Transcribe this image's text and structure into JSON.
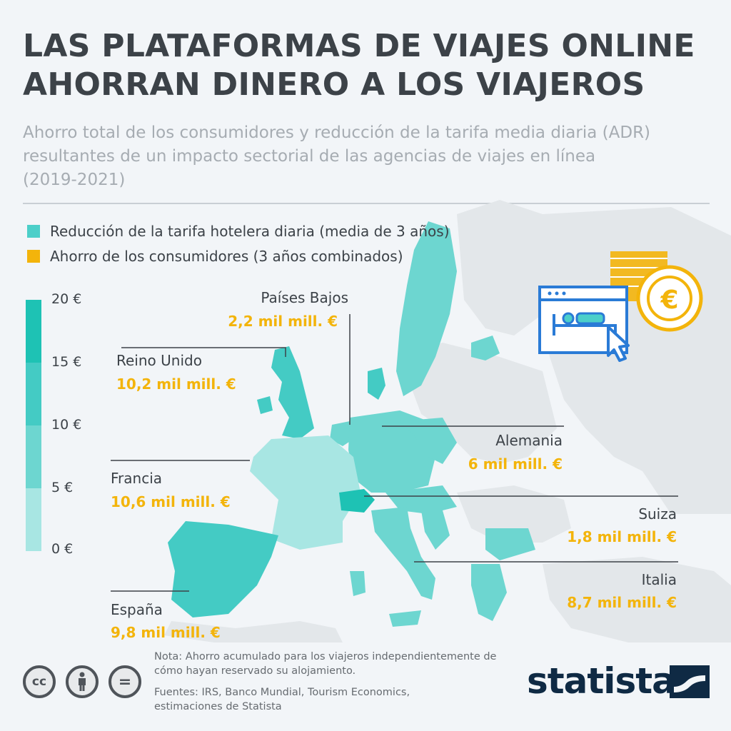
{
  "header": {
    "title": "LAS PLATAFORMAS DE VIAJES ONLINE AHORRAN DINERO A LOS VIAJEROS",
    "subtitle": "Ahorro total de los consumidores y reducción de la tarifa media diaria (ADR) resultantes de un impacto sectorial de las agencias de viajes en línea (2019-2021)"
  },
  "legend": {
    "items": [
      {
        "label": "Reducción de la tarifa hotelera diaria (media de 3 años)",
        "color": "#4ccfc9"
      },
      {
        "label": "Ahorro de los consumidores (3 años combinados)",
        "color": "#f3b40b"
      }
    ]
  },
  "color_scale": {
    "ticks": [
      "20 €",
      "15 €",
      "10 €",
      "5 €",
      "0 €"
    ],
    "bands": [
      "#1ec2b4",
      "#44cbc4",
      "#6dd6d0",
      "#a8e6e3"
    ]
  },
  "countries": [
    {
      "name": "Países Bajos",
      "value": "2,2 mil mill. €"
    },
    {
      "name": "Reino Unido",
      "value": "10,2 mil mill. €"
    },
    {
      "name": "Alemania",
      "value": "6 mil mill. €"
    },
    {
      "name": "Francia",
      "value": "10,6 mil mill. €"
    },
    {
      "name": "Suiza",
      "value": "1,8 mil mill. €"
    },
    {
      "name": "Italia",
      "value": "8,7 mil mill. €"
    },
    {
      "name": "España",
      "value": "9,8 mil mill. €"
    }
  ],
  "icons": [
    "hotel-booking-icon",
    "euro-coins-icon",
    "cc-icon",
    "attribution-icon",
    "no-derivatives-icon"
  ],
  "footer": {
    "note": "Nota: Ahorro acumulado para los viajeros independientemente de cómo hayan reservado su alojamiento.",
    "sources": "Fuentes: IRS, Banco Mundial, Tourism Economics, estimaciones de Statista",
    "brand": "statista",
    "cc_label": "cc",
    "nd_label": "="
  }
}
